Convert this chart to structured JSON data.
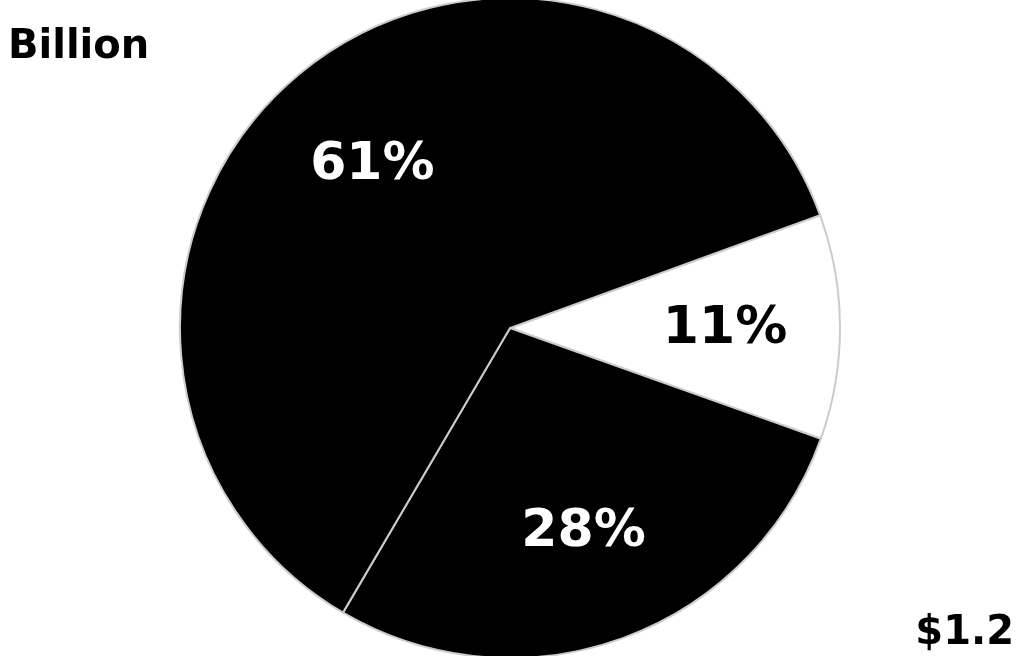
{
  "chart_data": {
    "type": "pie",
    "categories": [
      null,
      null,
      null
    ],
    "values": [
      11,
      28,
      61
    ],
    "colors": [
      "#ffffff",
      "#000000",
      "#000000"
    ],
    "value_labels": [
      "11%",
      "28%",
      "61%"
    ],
    "annotations": [
      "Billion",
      "$1.2"
    ],
    "legend": false
  }
}
